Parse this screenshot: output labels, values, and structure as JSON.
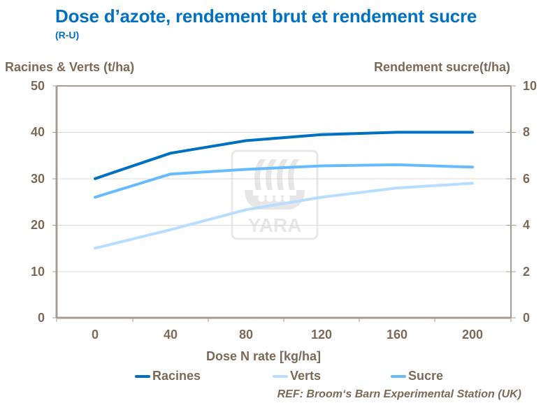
{
  "header": {
    "title": "Dose d’azote, rendement brut et rendement sucre",
    "subtitle": "(R-U)"
  },
  "axes": {
    "y_left_title": "Racines & Verts (t/ha)",
    "y_right_title": "Rendement sucre(t/ha)",
    "x_title": "Dose N rate [kg/ha]",
    "y_left_ticks": [
      "50",
      "40",
      "30",
      "20",
      "10",
      "0"
    ],
    "y_right_ticks": [
      "10",
      "8",
      "6",
      "4",
      "2",
      "0"
    ],
    "x_ticks": [
      "0",
      "40",
      "80",
      "120",
      "160",
      "200"
    ]
  },
  "legend": {
    "items": [
      {
        "label": "Racines",
        "color": "#0070C0"
      },
      {
        "label": "Verts",
        "color": "#B7DEFF"
      },
      {
        "label": "Sucre",
        "color": "#66BBFF"
      }
    ]
  },
  "watermark": {
    "text": "YARA",
    "icon": "yara-viking-ship-logo"
  },
  "footer": {
    "reference": "REF: Broom‘s Barn Experimental Station (UK)"
  },
  "colors": {
    "title": "#0070C0",
    "text": "#7B6A58",
    "axis": "#A89C90",
    "grid": "#E2DDD8",
    "racines": "#0070C0",
    "verts": "#B7DEFF",
    "sucre": "#66BBFF"
  },
  "chart_data": {
    "type": "line",
    "title": "Dose d’azote, rendement brut et rendement sucre",
    "subtitle": "(R-U)",
    "xlabel": "Dose N rate [kg/ha]",
    "ylabel": "Racines & Verts (t/ha)",
    "ylabel_right": "Rendement sucre(t/ha)",
    "categories": [
      "0",
      "40",
      "80",
      "120",
      "160",
      "200"
    ],
    "ylim": [
      0,
      50
    ],
    "ylim_right": [
      0,
      10
    ],
    "grid": true,
    "legend_position": "bottom",
    "series": [
      {
        "name": "Racines",
        "axis": "left",
        "values": [
          30,
          35.5,
          38.2,
          39.5,
          40,
          40
        ]
      },
      {
        "name": "Verts",
        "axis": "left",
        "values": [
          15,
          19,
          23.3,
          26,
          28,
          29
        ]
      },
      {
        "name": "Sucre",
        "axis": "right",
        "values": [
          5.2,
          6.2,
          6.4,
          6.55,
          6.6,
          6.5
        ]
      }
    ],
    "annotations": [
      "REF: Broom‘s Barn Experimental Station (UK)"
    ]
  }
}
